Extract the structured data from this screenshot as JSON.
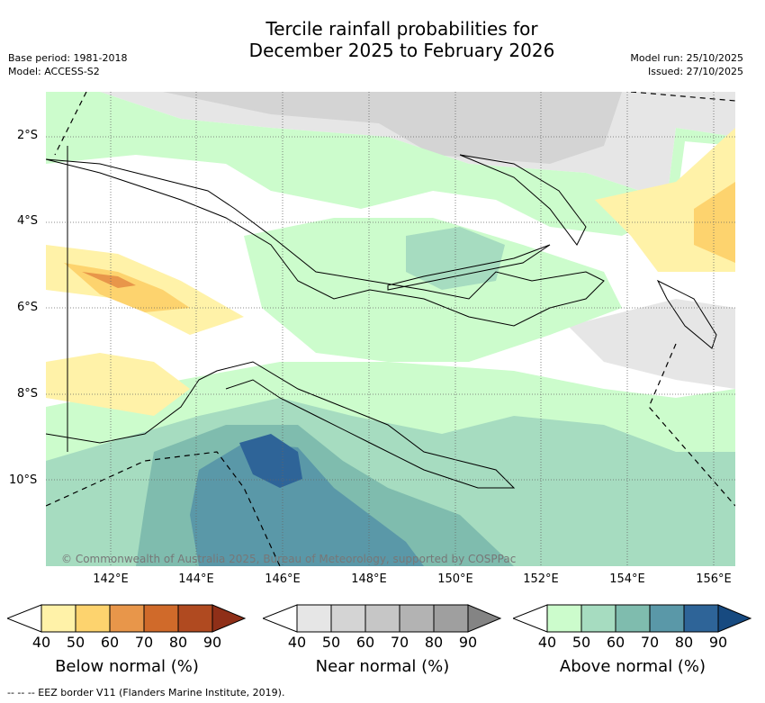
{
  "title": "Tercile rainfall probabilities for\nDecember 2025 to February 2026",
  "title_line1": "Tercile rainfall probabilities for",
  "title_line2": "December 2025 to February 2026",
  "base_period": "Base period: 1981-2018",
  "model": "Model: ACCESS-S2",
  "model_run": "Model run: 25/10/2025",
  "issued": "Issued: 27/10/2025",
  "lat_labels": [
    "2°S",
    "4°S",
    "6°S",
    "8°S",
    "10°S"
  ],
  "lon_labels": [
    "142°E",
    "144°E",
    "146°E",
    "148°E",
    "150°E",
    "152°E",
    "154°E",
    "156°E"
  ],
  "copyright": "© Commonwealth of Australia 2025, Bureau of Meteorology, supported by COSPPac",
  "eez_note": "-- -- -- EEZ border V11 (Flanders Marine Institute, 2019).",
  "colorbars": [
    {
      "title": "Below normal (%)",
      "ticks": [
        "40",
        "50",
        "60",
        "70",
        "80",
        "90"
      ],
      "colors": [
        "#fff2a8",
        "#fdd36e",
        "#e8964a",
        "#d06a2a",
        "#b04a20",
        "#8f2f18"
      ]
    },
    {
      "title": "Near normal (%)",
      "ticks": [
        "40",
        "50",
        "60",
        "70",
        "80",
        "90"
      ],
      "colors": [
        "#e6e6e6",
        "#d4d4d4",
        "#c6c6c6",
        "#b3b3b3",
        "#9f9f9f",
        "#848484"
      ]
    },
    {
      "title": "Above normal (%)",
      "ticks": [
        "40",
        "50",
        "60",
        "70",
        "80",
        "90"
      ],
      "colors": [
        "#ccfccc",
        "#a6dcc0",
        "#7fbcae",
        "#5a98a8",
        "#2e6498",
        "#174a80"
      ]
    }
  ],
  "colors": {
    "land_white": "#ffffff",
    "coast": "#000000",
    "grid": "#666666"
  }
}
